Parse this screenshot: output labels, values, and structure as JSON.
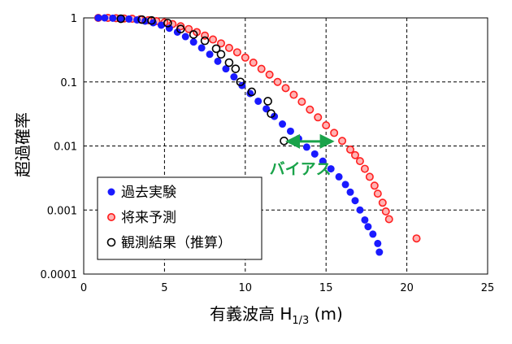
{
  "chart_data": {
    "type": "scatter",
    "title": "",
    "xlabel": "有義波高 H1/3 (m)",
    "xlabel_parts": {
      "main": "有義波高 H",
      "sub": "1/3",
      "tail": " (m)"
    },
    "ylabel": "超過確率",
    "x_range": [
      0,
      25
    ],
    "y_range": [
      0.0001,
      1
    ],
    "y_scale": "log",
    "grid": "dashed",
    "legend_position": "bottom-left",
    "x_ticks": [
      "0",
      "5",
      "10",
      "15",
      "20",
      "25"
    ],
    "y_ticks": [
      "0.0001",
      "0.001",
      "0.01",
      "0.1",
      "1"
    ],
    "series": [
      {
        "name": "過去実験",
        "marker": "filled-circle",
        "color": "#1a1aff",
        "x": [
          0.9,
          1.3,
          1.8,
          2.3,
          2.8,
          3.3,
          3.8,
          4.3,
          4.8,
          5.3,
          5.8,
          6.3,
          6.8,
          7.3,
          7.8,
          8.3,
          8.8,
          9.3,
          9.8,
          10.3,
          10.8,
          11.3,
          11.8,
          12.3,
          12.8,
          13.3,
          13.8,
          14.3,
          14.8,
          15.3,
          15.8,
          16.2,
          16.5,
          16.8,
          17.1,
          17.4,
          17.6,
          17.9,
          18.2,
          18.3
        ],
        "y": [
          1,
          1,
          0.99,
          0.98,
          0.96,
          0.93,
          0.89,
          0.84,
          0.77,
          0.69,
          0.6,
          0.51,
          0.42,
          0.34,
          0.27,
          0.21,
          0.16,
          0.12,
          0.088,
          0.066,
          0.05,
          0.038,
          0.029,
          0.022,
          0.017,
          0.013,
          0.0096,
          0.0075,
          0.0058,
          0.0044,
          0.0033,
          0.0025,
          0.0019,
          0.0014,
          0.001,
          0.0007,
          0.00055,
          0.00042,
          0.0003,
          0.00022
        ]
      },
      {
        "name": "将来予測",
        "marker": "open-circle-red",
        "color": "#ff2020",
        "x": [
          0.9,
          1.5,
          2,
          2.5,
          3,
          3.5,
          4,
          4.5,
          5,
          5.5,
          6,
          6.5,
          7,
          7.5,
          8,
          8.5,
          9,
          9.5,
          10,
          10.5,
          11,
          11.5,
          12,
          12.5,
          13,
          13.5,
          14,
          14.5,
          15,
          15.5,
          16,
          16.5,
          16.8,
          17.1,
          17.4,
          17.7,
          18,
          18.2,
          18.5,
          18.7,
          18.9,
          20.6
        ],
        "y": [
          1,
          1,
          0.99,
          0.98,
          0.97,
          0.95,
          0.92,
          0.89,
          0.85,
          0.8,
          0.74,
          0.67,
          0.6,
          0.53,
          0.46,
          0.4,
          0.34,
          0.29,
          0.24,
          0.2,
          0.16,
          0.13,
          0.1,
          0.08,
          0.063,
          0.049,
          0.037,
          0.028,
          0.021,
          0.016,
          0.012,
          0.0088,
          0.0072,
          0.0058,
          0.0044,
          0.0033,
          0.0024,
          0.0018,
          0.0013,
          0.00095,
          0.00072,
          0.00036
        ]
      },
      {
        "name": "観測結果（推算）",
        "marker": "open-circle-black",
        "color": "#000000",
        "x": [
          2.3,
          3.6,
          4.2,
          5.2,
          6,
          6.8,
          7.5,
          8.2,
          8.5,
          9,
          9.4,
          9.7,
          10.4,
          11.4,
          11.6,
          12.4
        ],
        "y": [
          0.97,
          0.94,
          0.91,
          0.83,
          0.67,
          0.55,
          0.44,
          0.33,
          0.27,
          0.2,
          0.16,
          0.1,
          0.07,
          0.05,
          0.032,
          0.012
        ]
      }
    ],
    "annotations": [
      {
        "text": "バイアス",
        "color": "#1aa34a",
        "arrow_from": [
          13,
          0.0118
        ],
        "arrow_to": [
          15,
          0.0118
        ],
        "anchor_x": 11.5,
        "anchor_y": 0.0045
      }
    ]
  }
}
